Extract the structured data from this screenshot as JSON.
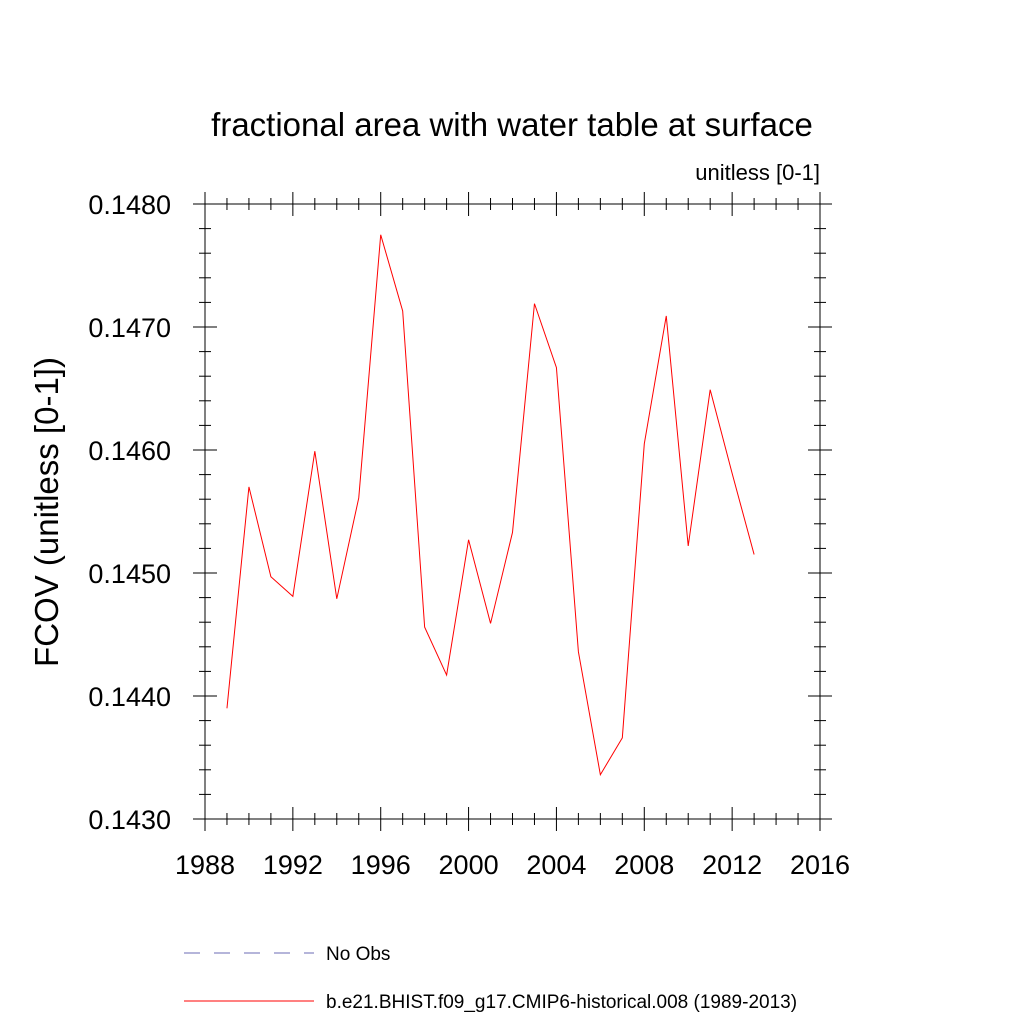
{
  "chart_data": {
    "type": "line",
    "title": "fractional area with water table at surface",
    "subtitle": "unitless [0-1]",
    "ylabel": "FCOV  (unitless [0-1])",
    "xlabel": "",
    "xlim": [
      1988,
      2016
    ],
    "ylim": [
      0.143,
      0.148
    ],
    "x_ticks": [
      1988,
      1992,
      1996,
      2000,
      2004,
      2008,
      2012,
      2016
    ],
    "x_tick_labels": [
      "1988",
      "1992",
      "1996",
      "2000",
      "2004",
      "2008",
      "2012",
      "2016"
    ],
    "y_ticks": [
      0.143,
      0.144,
      0.145,
      0.146,
      0.147,
      0.148
    ],
    "y_tick_labels": [
      "0.1430",
      "0.1440",
      "0.1450",
      "0.1460",
      "0.1470",
      "0.1480"
    ],
    "grid": false,
    "legend_position": "bottom",
    "series": [
      {
        "name": "b.e21.BHIST.f09_g17.CMIP6-historical.008 (1989-2013)",
        "color": "#ff0000",
        "style": "solid",
        "x": [
          1989,
          1990,
          1991,
          1992,
          1993,
          1994,
          1995,
          1996,
          1997,
          1998,
          1999,
          2000,
          2001,
          2002,
          2003,
          2004,
          2005,
          2006,
          2007,
          2008,
          2009,
          2010,
          2011,
          2012,
          2013
        ],
        "y": [
          0.1439,
          0.1457,
          0.14497,
          0.14481,
          0.14599,
          0.14479,
          0.14561,
          0.14775,
          0.14713,
          0.14456,
          0.14417,
          0.14527,
          0.14459,
          0.14533,
          0.14719,
          0.14667,
          0.14436,
          0.14336,
          0.14366,
          0.14605,
          0.14709,
          0.14522,
          0.14649,
          0.14581,
          0.14515
        ]
      }
    ],
    "legend": [
      {
        "label": "No Obs",
        "color": "#6b6bb5",
        "style": "dashed"
      },
      {
        "label": "b.e21.BHIST.f09_g17.CMIP6-historical.008 (1989-2013)",
        "color": "#ff0000",
        "style": "solid"
      }
    ]
  }
}
